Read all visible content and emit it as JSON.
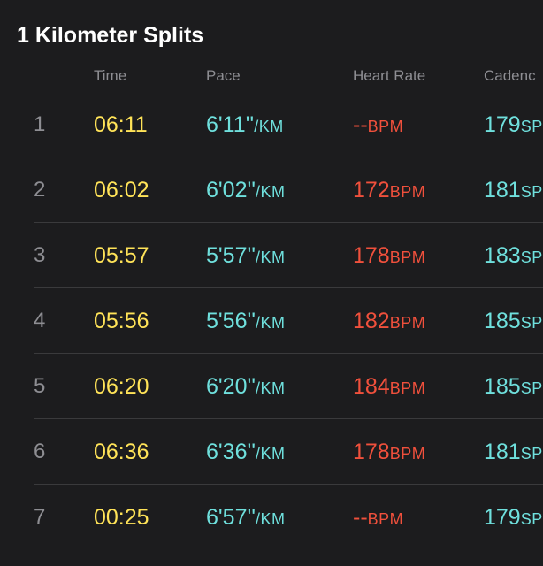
{
  "title": "1 Kilometer Splits",
  "headers": {
    "time": "Time",
    "pace": "Pace",
    "heart_rate": "Heart Rate",
    "cadence": "Cadenc"
  },
  "units": {
    "pace": "/KM",
    "heart_rate": "BPM",
    "cadence": "SP"
  },
  "splits": [
    {
      "num": "1",
      "time": "06:11",
      "pace": "6'11''",
      "heart_rate": "--",
      "cadence": "179"
    },
    {
      "num": "2",
      "time": "06:02",
      "pace": "6'02''",
      "heart_rate": "172",
      "cadence": "181"
    },
    {
      "num": "3",
      "time": "05:57",
      "pace": "5'57''",
      "heart_rate": "178",
      "cadence": "183"
    },
    {
      "num": "4",
      "time": "05:56",
      "pace": "5'56''",
      "heart_rate": "182",
      "cadence": "185"
    },
    {
      "num": "5",
      "time": "06:20",
      "pace": "6'20''",
      "heart_rate": "184",
      "cadence": "185"
    },
    {
      "num": "6",
      "time": "06:36",
      "pace": "6'36''",
      "heart_rate": "178",
      "cadence": "181"
    },
    {
      "num": "7",
      "time": "00:25",
      "pace": "6'57''",
      "heart_rate": "--",
      "cadence": "179"
    }
  ],
  "colors": {
    "background": "#1c1c1e",
    "time": "#ffe358",
    "pace": "#6fe0dd",
    "heart_rate": "#f0503c",
    "cadence": "#6fe0dd",
    "label": "#8e8e93"
  }
}
